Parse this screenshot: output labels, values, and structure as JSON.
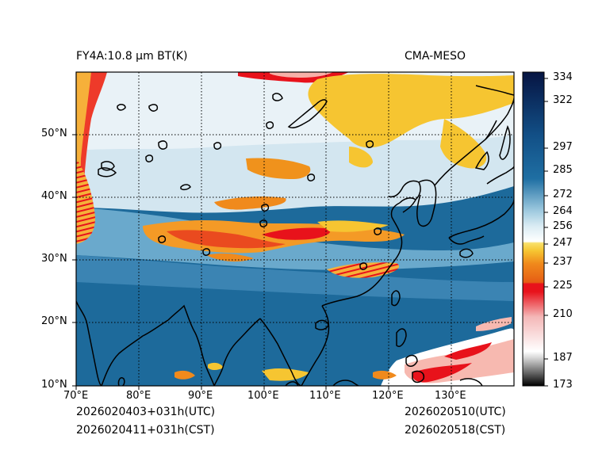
{
  "title_left": "FY4A:10.8 µm BT(K)",
  "title_right": "CMA-MESO",
  "footer": {
    "utc_left": "2026020403+031h(UTC)",
    "cst_left": "2026020411+031h(CST)",
    "utc_right": "2026020510(UTC)",
    "cst_right": "2026020518(CST)"
  },
  "axes": {
    "lon_ticks": [
      "70°E",
      "80°E",
      "90°E",
      "100°E",
      "110°E",
      "120°E",
      "130°E"
    ],
    "lat_ticks": [
      "10°N",
      "20°N",
      "30°N",
      "40°N",
      "50°N"
    ],
    "lon_range": [
      70,
      140
    ],
    "lat_range": [
      10,
      60
    ]
  },
  "colorbar": {
    "range": [
      173,
      337
    ],
    "ticks": [
      334,
      322,
      297,
      285,
      272,
      264,
      256,
      247,
      237,
      225,
      210,
      187,
      173
    ],
    "colors": {
      "dark_navy": "#071a4a",
      "blue": "#1f6fa3",
      "pale_blue": "#cfe4ef",
      "yellow": "#f6c531",
      "orange": "#f08a1c",
      "red": "#e8121b",
      "grey": "#8a8a8a",
      "black": "#000000"
    }
  }
}
